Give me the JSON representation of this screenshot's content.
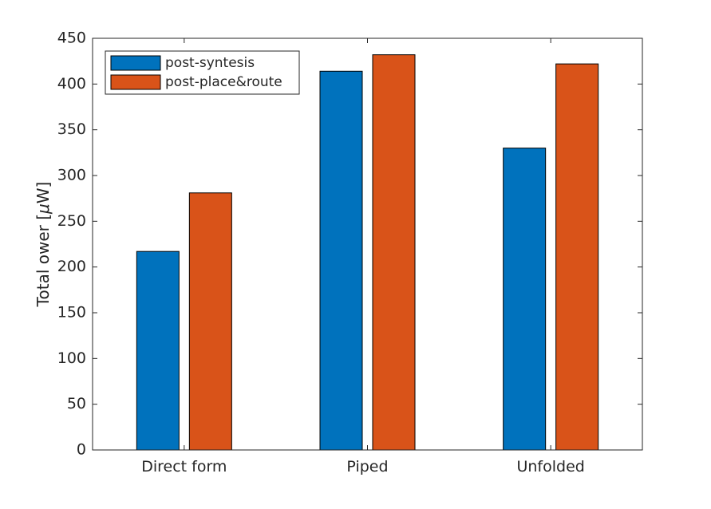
{
  "chart_data": {
    "type": "bar",
    "title": "",
    "xlabel": "",
    "ylabel": "Total ower [μW]",
    "ylabel_prefix": "Total ower [",
    "ylabel_unit_mu": "μ",
    "ylabel_unit_rest": "W]",
    "categories": [
      "Direct form",
      "Piped",
      "Unfolded"
    ],
    "series": [
      {
        "name": "post-syntesis",
        "color": "#0072BD",
        "values": [
          217,
          414,
          330
        ]
      },
      {
        "name": "post-place&route",
        "color": "#D95319",
        "values": [
          281,
          432,
          422
        ]
      }
    ],
    "ylim": [
      0,
      450
    ],
    "yticks": [
      0,
      50,
      100,
      150,
      200,
      250,
      300,
      350,
      400,
      450
    ],
    "grid": false,
    "legend_position": "top-left"
  }
}
